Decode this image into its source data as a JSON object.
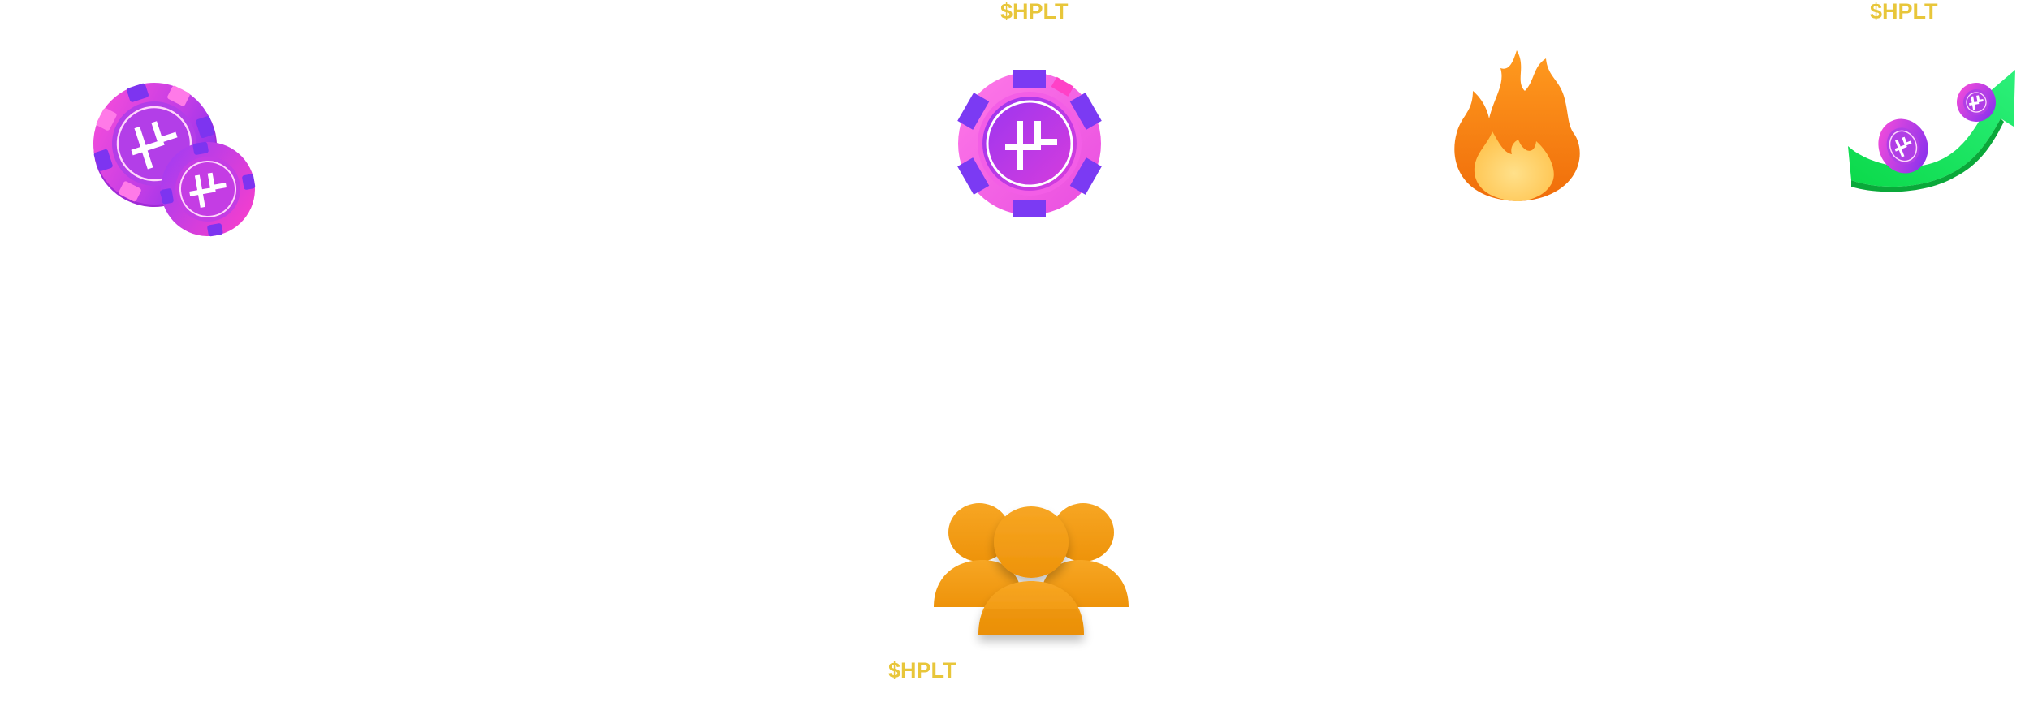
{
  "labels": {
    "top_center": "$HPLT",
    "top_right": "$HPLT",
    "bottom": "$HPLT"
  },
  "colors": {
    "label": "#e8c63a",
    "chip_magenta": "#e23bd8",
    "chip_purple": "#8a2be2",
    "flame_orange": "#f57c00",
    "flame_yellow": "#ffd36a",
    "people_orange": "#f29b0c",
    "arrow_green": "#19d33b",
    "background": "#ffffff"
  },
  "icons": {
    "chip_stack": "hplt-chips-stack-icon",
    "chip_single": "hplt-chip-icon",
    "fire": "fire-icon",
    "growth": "growth-arrow-chips-icon",
    "community": "community-people-icon"
  }
}
